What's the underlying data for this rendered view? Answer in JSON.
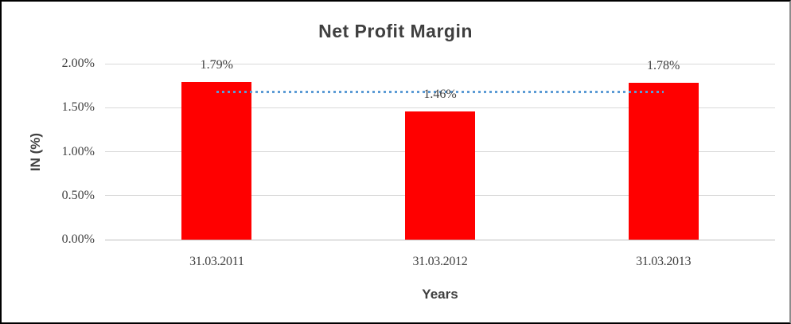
{
  "chart_data": {
    "type": "bar",
    "title": "Net Profit Margin",
    "xlabel": "Years",
    "ylabel": "IN (%)",
    "categories": [
      "31.03.2011",
      "31.03.2012",
      "31.03.2013"
    ],
    "values": [
      1.79,
      1.46,
      1.78
    ],
    "data_labels": [
      "1.79%",
      "1.46%",
      "1.78%"
    ],
    "ylim": [
      0,
      2
    ],
    "yticks": [
      {
        "value": 0.0,
        "label": "0.00%"
      },
      {
        "value": 0.5,
        "label": "0.50%"
      },
      {
        "value": 1.0,
        "label": "1.00%"
      },
      {
        "value": 1.5,
        "label": "1.50%"
      },
      {
        "value": 2.0,
        "label": "2.00%"
      }
    ],
    "grid": true,
    "legend": "none",
    "bar_color": "#ff0000",
    "label_color": "#404040",
    "gridline_color": "#d9d9d9",
    "axisline_color": "#bfbfbf",
    "trendline": {
      "type": "linear",
      "style": "dotted",
      "color": "#5b9bd5",
      "start_value": 1.682,
      "end_value": 1.672
    }
  }
}
